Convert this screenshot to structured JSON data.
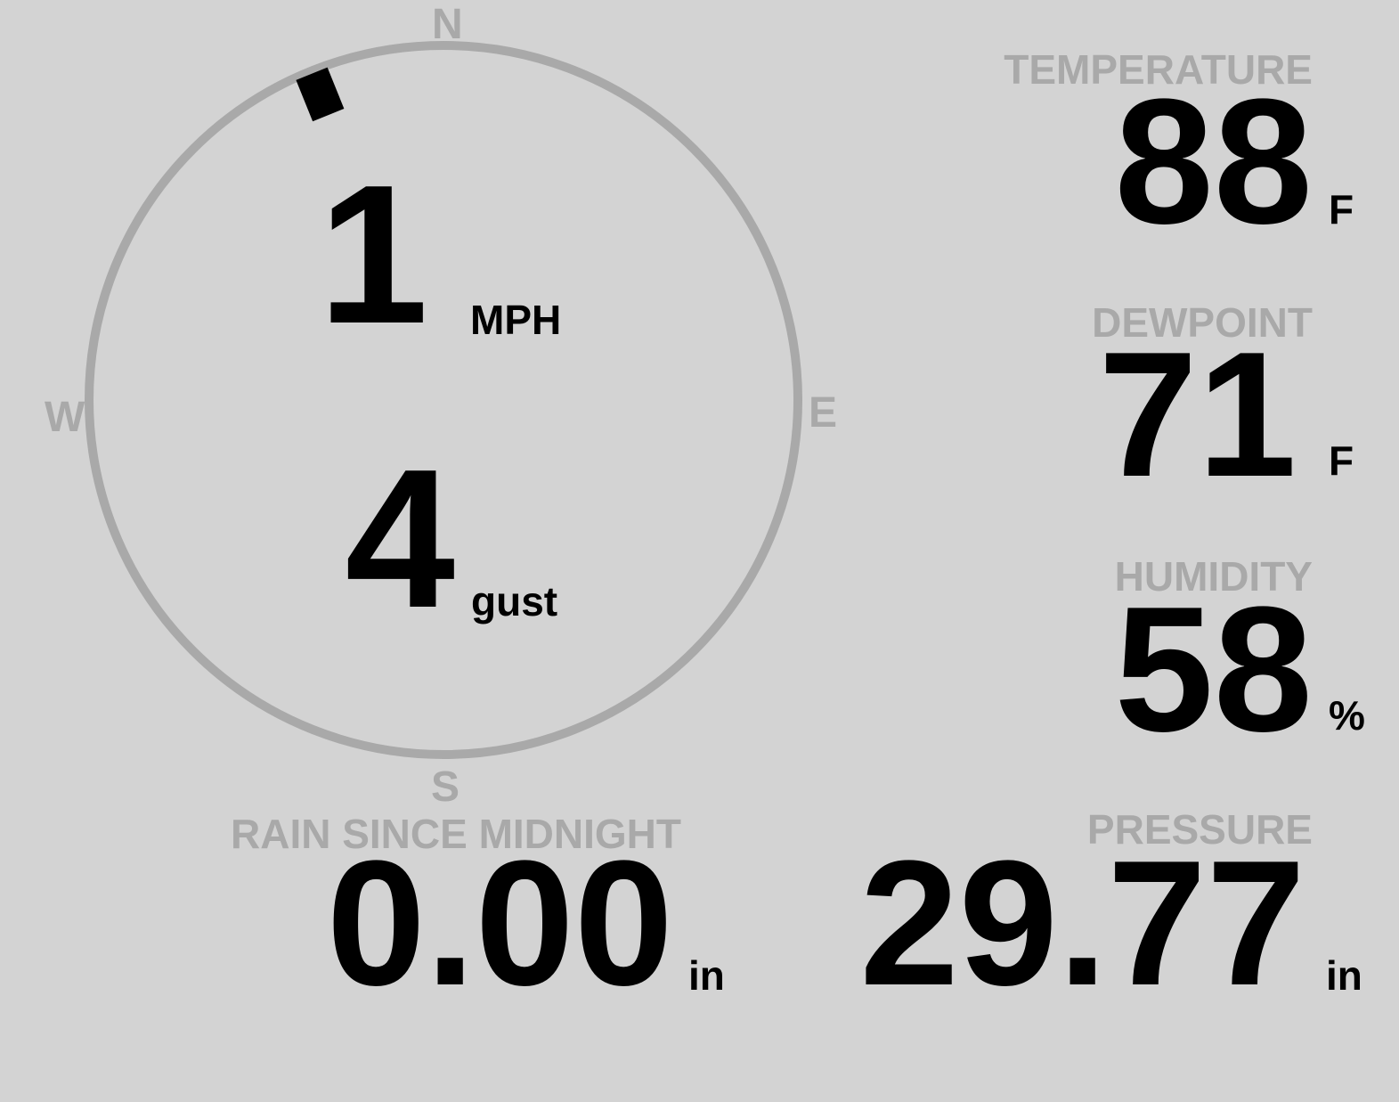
{
  "wind": {
    "compass": {
      "n": "N",
      "e": "E",
      "s": "S",
      "w": "W"
    },
    "direction_degrees": 338,
    "speed": "1",
    "speed_unit": "MPH",
    "gust": "4",
    "gust_unit": "gust"
  },
  "temperature": {
    "label": "TEMPERATURE",
    "value": "88",
    "unit": "F"
  },
  "dewpoint": {
    "label": "DEWPOINT",
    "value": "71",
    "unit": "F"
  },
  "humidity": {
    "label": "HUMIDITY",
    "value": "58",
    "unit": "%"
  },
  "rain": {
    "label": "RAIN SINCE MIDNIGHT",
    "value": "0.00",
    "unit": "in"
  },
  "pressure": {
    "label": "PRESSURE",
    "value": "29.77",
    "unit": "in"
  },
  "colors": {
    "background": "#d3d3d3",
    "label": "#a9a9a9",
    "value": "#000000",
    "dial": "#a9a9a9"
  }
}
